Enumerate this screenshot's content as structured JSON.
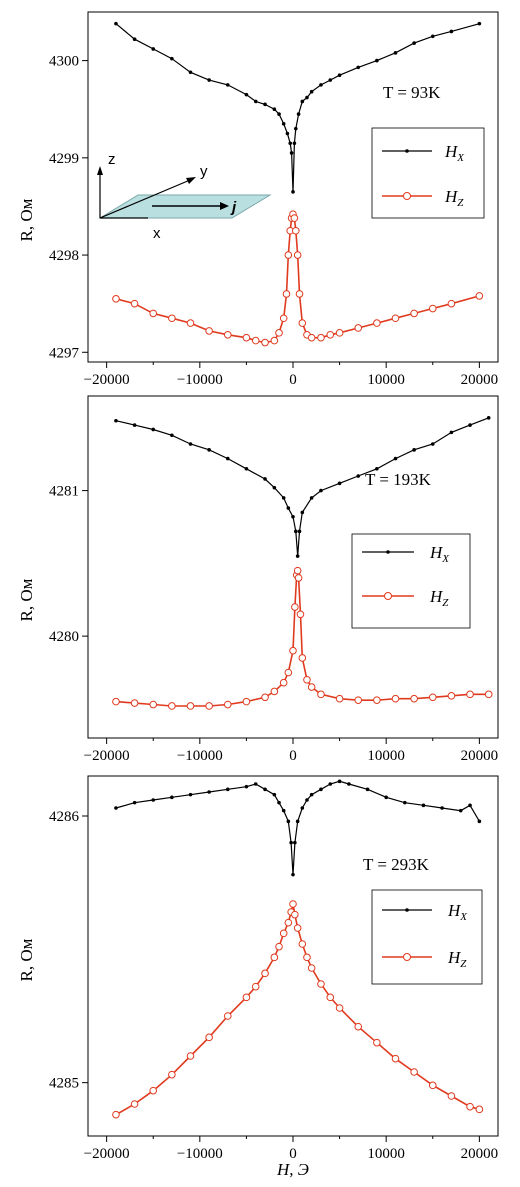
{
  "colors": {
    "hx": "#000000",
    "hz": "#e03a1e",
    "plane": "#b9dfe0",
    "plane_stroke": "#7aa7aa"
  },
  "x_axis_label": "H, Э",
  "chart_data": [
    {
      "type": "line",
      "temperature_label": "T = 93K",
      "ylabel": "R, Ом",
      "xlim": [
        -22000,
        22000
      ],
      "ylim": [
        4296.9,
        4300.5
      ],
      "yticks": [
        4297,
        4298,
        4299,
        4300
      ],
      "ytick_labels": [
        "4297",
        "4298",
        "4299",
        "4300"
      ],
      "xticks": [
        -20000,
        -10000,
        0,
        10000,
        20000
      ],
      "xtick_labels": [
        "−20000",
        "−10000",
        "0",
        "10000",
        "20000"
      ],
      "legend": [
        "H_X",
        "H_Z"
      ],
      "series": [
        {
          "name": "H_X",
          "x": [
            -19000,
            -17000,
            -15000,
            -13000,
            -11000,
            -9000,
            -7000,
            -5000,
            -4000,
            -3000,
            -2000,
            -1500,
            -1000,
            -600,
            -300,
            -150,
            0,
            150,
            300,
            600,
            1000,
            1500,
            2000,
            3000,
            4000,
            5000,
            7000,
            9000,
            11000,
            13000,
            15000,
            17000,
            20000
          ],
          "y": [
            4300.38,
            4300.22,
            4300.12,
            4300.02,
            4299.88,
            4299.8,
            4299.75,
            4299.65,
            4299.58,
            4299.55,
            4299.5,
            4299.45,
            4299.35,
            4299.25,
            4299.15,
            4299.05,
            4298.65,
            4299.15,
            4299.3,
            4299.45,
            4299.58,
            4299.62,
            4299.68,
            4299.75,
            4299.8,
            4299.85,
            4299.93,
            4300.0,
            4300.08,
            4300.18,
            4300.25,
            4300.3,
            4300.38
          ]
        },
        {
          "name": "H_Z",
          "x": [
            -19000,
            -17000,
            -15000,
            -13000,
            -11000,
            -9000,
            -7000,
            -5000,
            -4000,
            -3000,
            -2000,
            -1500,
            -1000,
            -700,
            -500,
            -300,
            -150,
            0,
            150,
            300,
            500,
            700,
            1000,
            1500,
            2000,
            3000,
            4000,
            5000,
            7000,
            9000,
            11000,
            13000,
            15000,
            17000,
            20000
          ],
          "y": [
            4297.55,
            4297.5,
            4297.4,
            4297.35,
            4297.3,
            4297.22,
            4297.18,
            4297.15,
            4297.12,
            4297.1,
            4297.12,
            4297.2,
            4297.35,
            4297.6,
            4298.0,
            4298.25,
            4298.38,
            4298.42,
            4298.38,
            4298.25,
            4298.0,
            4297.6,
            4297.3,
            4297.18,
            4297.15,
            4297.15,
            4297.18,
            4297.2,
            4297.25,
            4297.3,
            4297.35,
            4297.4,
            4297.45,
            4297.5,
            4297.58
          ]
        }
      ]
    },
    {
      "type": "line",
      "temperature_label": "T = 193K",
      "ylabel": "R, Ом",
      "xlim": [
        -22000,
        22000
      ],
      "ylim": [
        4279.3,
        4281.65
      ],
      "yticks": [
        4280,
        4281
      ],
      "ytick_labels": [
        "4280",
        "4281"
      ],
      "xticks": [
        -20000,
        -10000,
        0,
        10000,
        20000
      ],
      "xtick_labels": [
        "−20000",
        "−10000",
        "0",
        "10000",
        "20000"
      ],
      "legend": [
        "H_X",
        "H_Z"
      ],
      "series": [
        {
          "name": "H_X",
          "x": [
            -19000,
            -17000,
            -15000,
            -13000,
            -11000,
            -9000,
            -7000,
            -5000,
            -3000,
            -2000,
            -1000,
            -500,
            0,
            300,
            500,
            700,
            1000,
            2000,
            3000,
            5000,
            7000,
            9000,
            11000,
            13000,
            15000,
            17000,
            19000,
            21000
          ],
          "y": [
            4281.48,
            4281.45,
            4281.42,
            4281.38,
            4281.32,
            4281.28,
            4281.22,
            4281.15,
            4281.08,
            4281.02,
            4280.95,
            4280.88,
            4280.82,
            4280.72,
            4280.55,
            4280.72,
            4280.85,
            4280.95,
            4281.0,
            4281.05,
            4281.1,
            4281.15,
            4281.22,
            4281.28,
            4281.32,
            4281.4,
            4281.45,
            4281.5
          ]
        },
        {
          "name": "H_Z",
          "x": [
            -19000,
            -17000,
            -15000,
            -13000,
            -11000,
            -9000,
            -7000,
            -5000,
            -3000,
            -2000,
            -1000,
            -500,
            0,
            200,
            400,
            500,
            600,
            800,
            1000,
            1500,
            2000,
            3000,
            5000,
            7000,
            9000,
            11000,
            13000,
            15000,
            17000,
            19000,
            21000
          ],
          "y": [
            4279.55,
            4279.54,
            4279.53,
            4279.52,
            4279.52,
            4279.52,
            4279.53,
            4279.55,
            4279.58,
            4279.62,
            4279.68,
            4279.75,
            4279.9,
            4280.2,
            4280.42,
            4280.45,
            4280.4,
            4280.15,
            4279.85,
            4279.7,
            4279.65,
            4279.6,
            4279.57,
            4279.56,
            4279.56,
            4279.57,
            4279.57,
            4279.58,
            4279.59,
            4279.6,
            4279.6
          ]
        }
      ]
    },
    {
      "type": "line",
      "temperature_label": "T = 293K",
      "ylabel": "R, Ом",
      "xlim": [
        -22000,
        22000
      ],
      "ylim": [
        4284.8,
        4286.15
      ],
      "yticks": [
        4285,
        4286
      ],
      "ytick_labels": [
        "4285",
        "4286"
      ],
      "xticks": [
        -20000,
        -10000,
        0,
        10000,
        20000
      ],
      "xtick_labels": [
        "−20000",
        "−10000",
        "0",
        "10000",
        "20000"
      ],
      "legend": [
        "H_X",
        "H_Z"
      ],
      "series": [
        {
          "name": "H_X",
          "x": [
            -19000,
            -17000,
            -15000,
            -13000,
            -11000,
            -9000,
            -7000,
            -5000,
            -4000,
            -3000,
            -2000,
            -1500,
            -1000,
            -500,
            -200,
            0,
            200,
            500,
            1000,
            1500,
            2000,
            3000,
            4000,
            5000,
            6000,
            8000,
            10000,
            12000,
            14000,
            16000,
            18000,
            19000,
            20000
          ],
          "y": [
            4286.03,
            4286.05,
            4286.06,
            4286.07,
            4286.08,
            4286.09,
            4286.1,
            4286.11,
            4286.12,
            4286.1,
            4286.08,
            4286.05,
            4286.02,
            4285.98,
            4285.9,
            4285.78,
            4285.9,
            4285.98,
            4286.03,
            4286.06,
            4286.08,
            4286.1,
            4286.12,
            4286.13,
            4286.12,
            4286.1,
            4286.07,
            4286.05,
            4286.04,
            4286.03,
            4286.02,
            4286.04,
            4285.98
          ]
        },
        {
          "name": "H_Z",
          "x": [
            -19000,
            -17000,
            -15000,
            -13000,
            -11000,
            -9000,
            -7000,
            -5000,
            -4000,
            -3000,
            -2000,
            -1500,
            -1000,
            -500,
            -200,
            0,
            200,
            500,
            1000,
            1500,
            2000,
            3000,
            4000,
            5000,
            7000,
            9000,
            11000,
            13000,
            15000,
            17000,
            19000,
            20000
          ],
          "y": [
            4284.88,
            4284.92,
            4284.97,
            4285.03,
            4285.1,
            4285.17,
            4285.25,
            4285.32,
            4285.36,
            4285.41,
            4285.47,
            4285.51,
            4285.56,
            4285.6,
            4285.64,
            4285.67,
            4285.63,
            4285.58,
            4285.52,
            4285.47,
            4285.43,
            4285.37,
            4285.32,
            4285.28,
            4285.21,
            4285.15,
            4285.09,
            4285.04,
            4284.99,
            4284.95,
            4284.91,
            4284.9
          ]
        }
      ]
    }
  ],
  "inset": {
    "z_label": "z",
    "y_label": "y",
    "x_label": "x",
    "j_label": "j"
  }
}
